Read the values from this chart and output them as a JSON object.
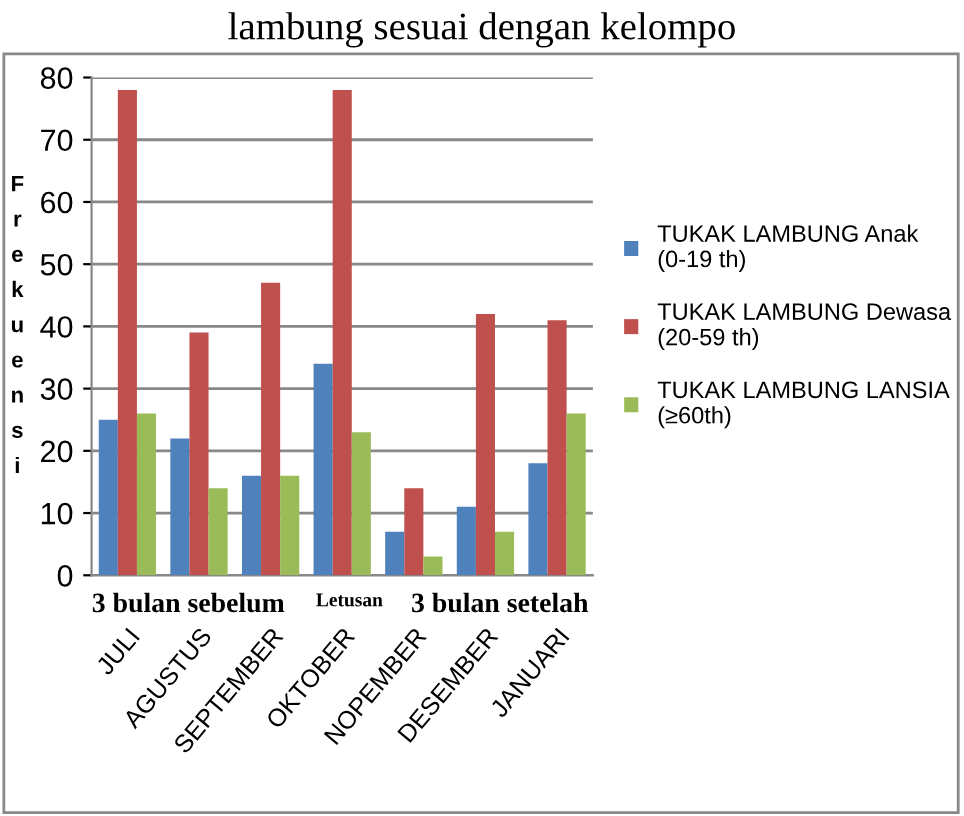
{
  "chart_data": {
    "type": "bar",
    "title": "lambung sesuai dengan kelompo",
    "ylabel": "Frekuensi",
    "categories": [
      "JULI",
      "AGUSTUS",
      "SEPTEMBER",
      "OKTOBER",
      "NOPEMBER",
      "DESEMBER",
      "JANUARI"
    ],
    "series": [
      {
        "name": "TUKAK LAMBUNG Anak (0-19 th)",
        "color": "#4f81bd",
        "values": [
          25,
          22,
          16,
          34,
          7,
          11,
          18
        ]
      },
      {
        "name": "TUKAK LAMBUNG Dewasa (20-59 th)",
        "color": "#c0504d",
        "values": [
          78,
          39,
          47,
          78,
          14,
          42,
          41
        ]
      },
      {
        "name": "TUKAK LAMBUNG LANSIA (≥60th)",
        "color": "#9bbb59",
        "values": [
          26,
          14,
          16,
          23,
          3,
          7,
          26
        ]
      }
    ],
    "ylim": [
      0,
      80
    ],
    "yticks": [
      0,
      10,
      20,
      30,
      40,
      50,
      60,
      70,
      80
    ],
    "grid": "y",
    "legend": "right",
    "annotations": [
      "3 bulan sebelum",
      "Letusan",
      "3 bulan setelah"
    ]
  }
}
